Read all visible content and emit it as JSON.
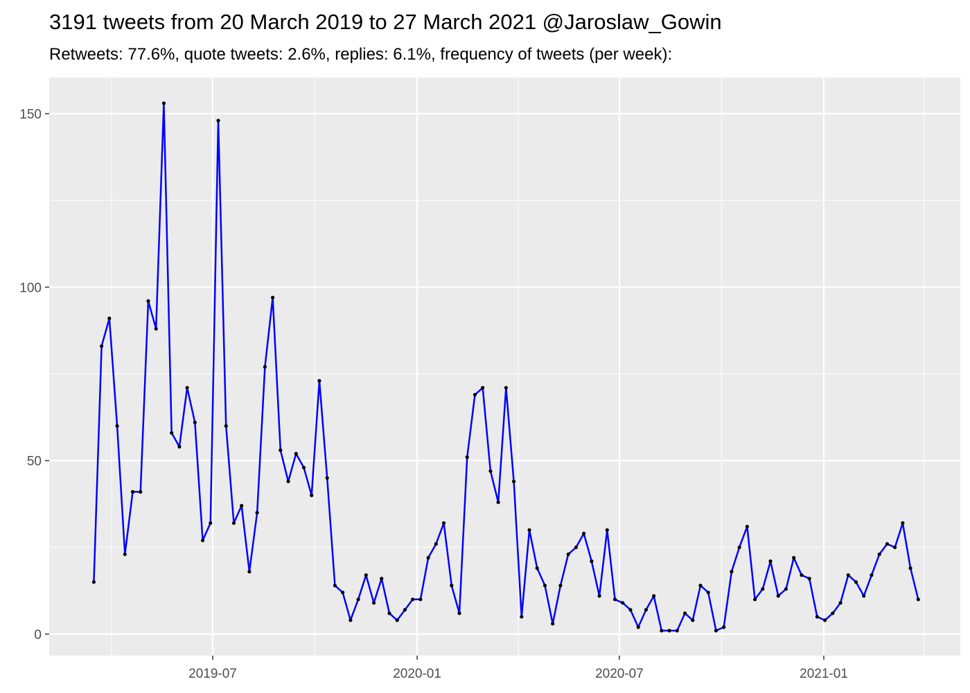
{
  "chart_data": {
    "type": "line",
    "title": "3191 tweets from 20 March 2019 to 27 March 2021 @Jaroslaw_Gowin",
    "subtitle": "Retweets: 77.6%, quote tweets: 2.6%, replies: 6.1%, frequency of tweets (per week):",
    "xlabel": "",
    "ylabel": "",
    "ylim": [
      -6,
      160
    ],
    "grid": true,
    "x_ticks": [
      "2019-07",
      "2020-01",
      "2020-07",
      "2021-01"
    ],
    "y_ticks": [
      "0",
      "50",
      "100",
      "150"
    ],
    "line_color": "#0000ff",
    "point_color": "#000000",
    "panel_background": "#ebebeb",
    "x": [
      "2019-03-16",
      "2019-03-23",
      "2019-03-30",
      "2019-04-06",
      "2019-04-13",
      "2019-04-20",
      "2019-04-27",
      "2019-05-04",
      "2019-05-11",
      "2019-05-18",
      "2019-05-25",
      "2019-06-01",
      "2019-06-08",
      "2019-06-15",
      "2019-06-22",
      "2019-06-29",
      "2019-07-06",
      "2019-07-13",
      "2019-07-20",
      "2019-07-27",
      "2019-08-03",
      "2019-08-10",
      "2019-08-17",
      "2019-08-24",
      "2019-08-31",
      "2019-09-07",
      "2019-09-14",
      "2019-09-21",
      "2019-09-28",
      "2019-10-05",
      "2019-10-12",
      "2019-10-19",
      "2019-10-26",
      "2019-11-02",
      "2019-11-09",
      "2019-11-16",
      "2019-11-23",
      "2019-11-30",
      "2019-12-07",
      "2019-12-14",
      "2019-12-21",
      "2019-12-28",
      "2020-01-04",
      "2020-01-11",
      "2020-01-18",
      "2020-01-25",
      "2020-02-01",
      "2020-02-08",
      "2020-02-15",
      "2020-02-22",
      "2020-02-29",
      "2020-03-07",
      "2020-03-14",
      "2020-03-21",
      "2020-03-28",
      "2020-04-04",
      "2020-04-11",
      "2020-04-18",
      "2020-04-25",
      "2020-05-02",
      "2020-05-09",
      "2020-05-16",
      "2020-05-23",
      "2020-05-30",
      "2020-06-06",
      "2020-06-13",
      "2020-06-20",
      "2020-06-27",
      "2020-07-04",
      "2020-07-11",
      "2020-07-18",
      "2020-07-25",
      "2020-08-01",
      "2020-08-08",
      "2020-08-15",
      "2020-08-22",
      "2020-08-29",
      "2020-09-05",
      "2020-09-12",
      "2020-09-19",
      "2020-09-26",
      "2020-10-03",
      "2020-10-10",
      "2020-10-17",
      "2020-10-24",
      "2020-10-31",
      "2020-11-07",
      "2020-11-14",
      "2020-11-21",
      "2020-11-28",
      "2020-12-05",
      "2020-12-12",
      "2020-12-19",
      "2020-12-26",
      "2021-01-02",
      "2021-01-09",
      "2021-01-16",
      "2021-01-23",
      "2021-01-30",
      "2021-02-06",
      "2021-02-13",
      "2021-02-20",
      "2021-02-27",
      "2021-03-06",
      "2021-03-13",
      "2021-03-20",
      "2021-03-27"
    ],
    "values": [
      15,
      83,
      91,
      60,
      23,
      41,
      41,
      96,
      88,
      153,
      58,
      54,
      71,
      61,
      27,
      32,
      148,
      60,
      32,
      37,
      18,
      35,
      77,
      97,
      53,
      44,
      52,
      48,
      40,
      73,
      45,
      14,
      12,
      4,
      10,
      17,
      9,
      16,
      6,
      4,
      7,
      10,
      10,
      22,
      26,
      32,
      14,
      6,
      51,
      69,
      71,
      47,
      38,
      71,
      44,
      5,
      30,
      19,
      14,
      3,
      14,
      23,
      25,
      29,
      21,
      11,
      30,
      10,
      9,
      7,
      2,
      7,
      11,
      1,
      1,
      1,
      6,
      4,
      14,
      12,
      1,
      2,
      18,
      25,
      31,
      10,
      13,
      21,
      11,
      13,
      22,
      17,
      16,
      5,
      4,
      6,
      9,
      17,
      15,
      11,
      17,
      23,
      26,
      25,
      32,
      19,
      10
    ]
  }
}
